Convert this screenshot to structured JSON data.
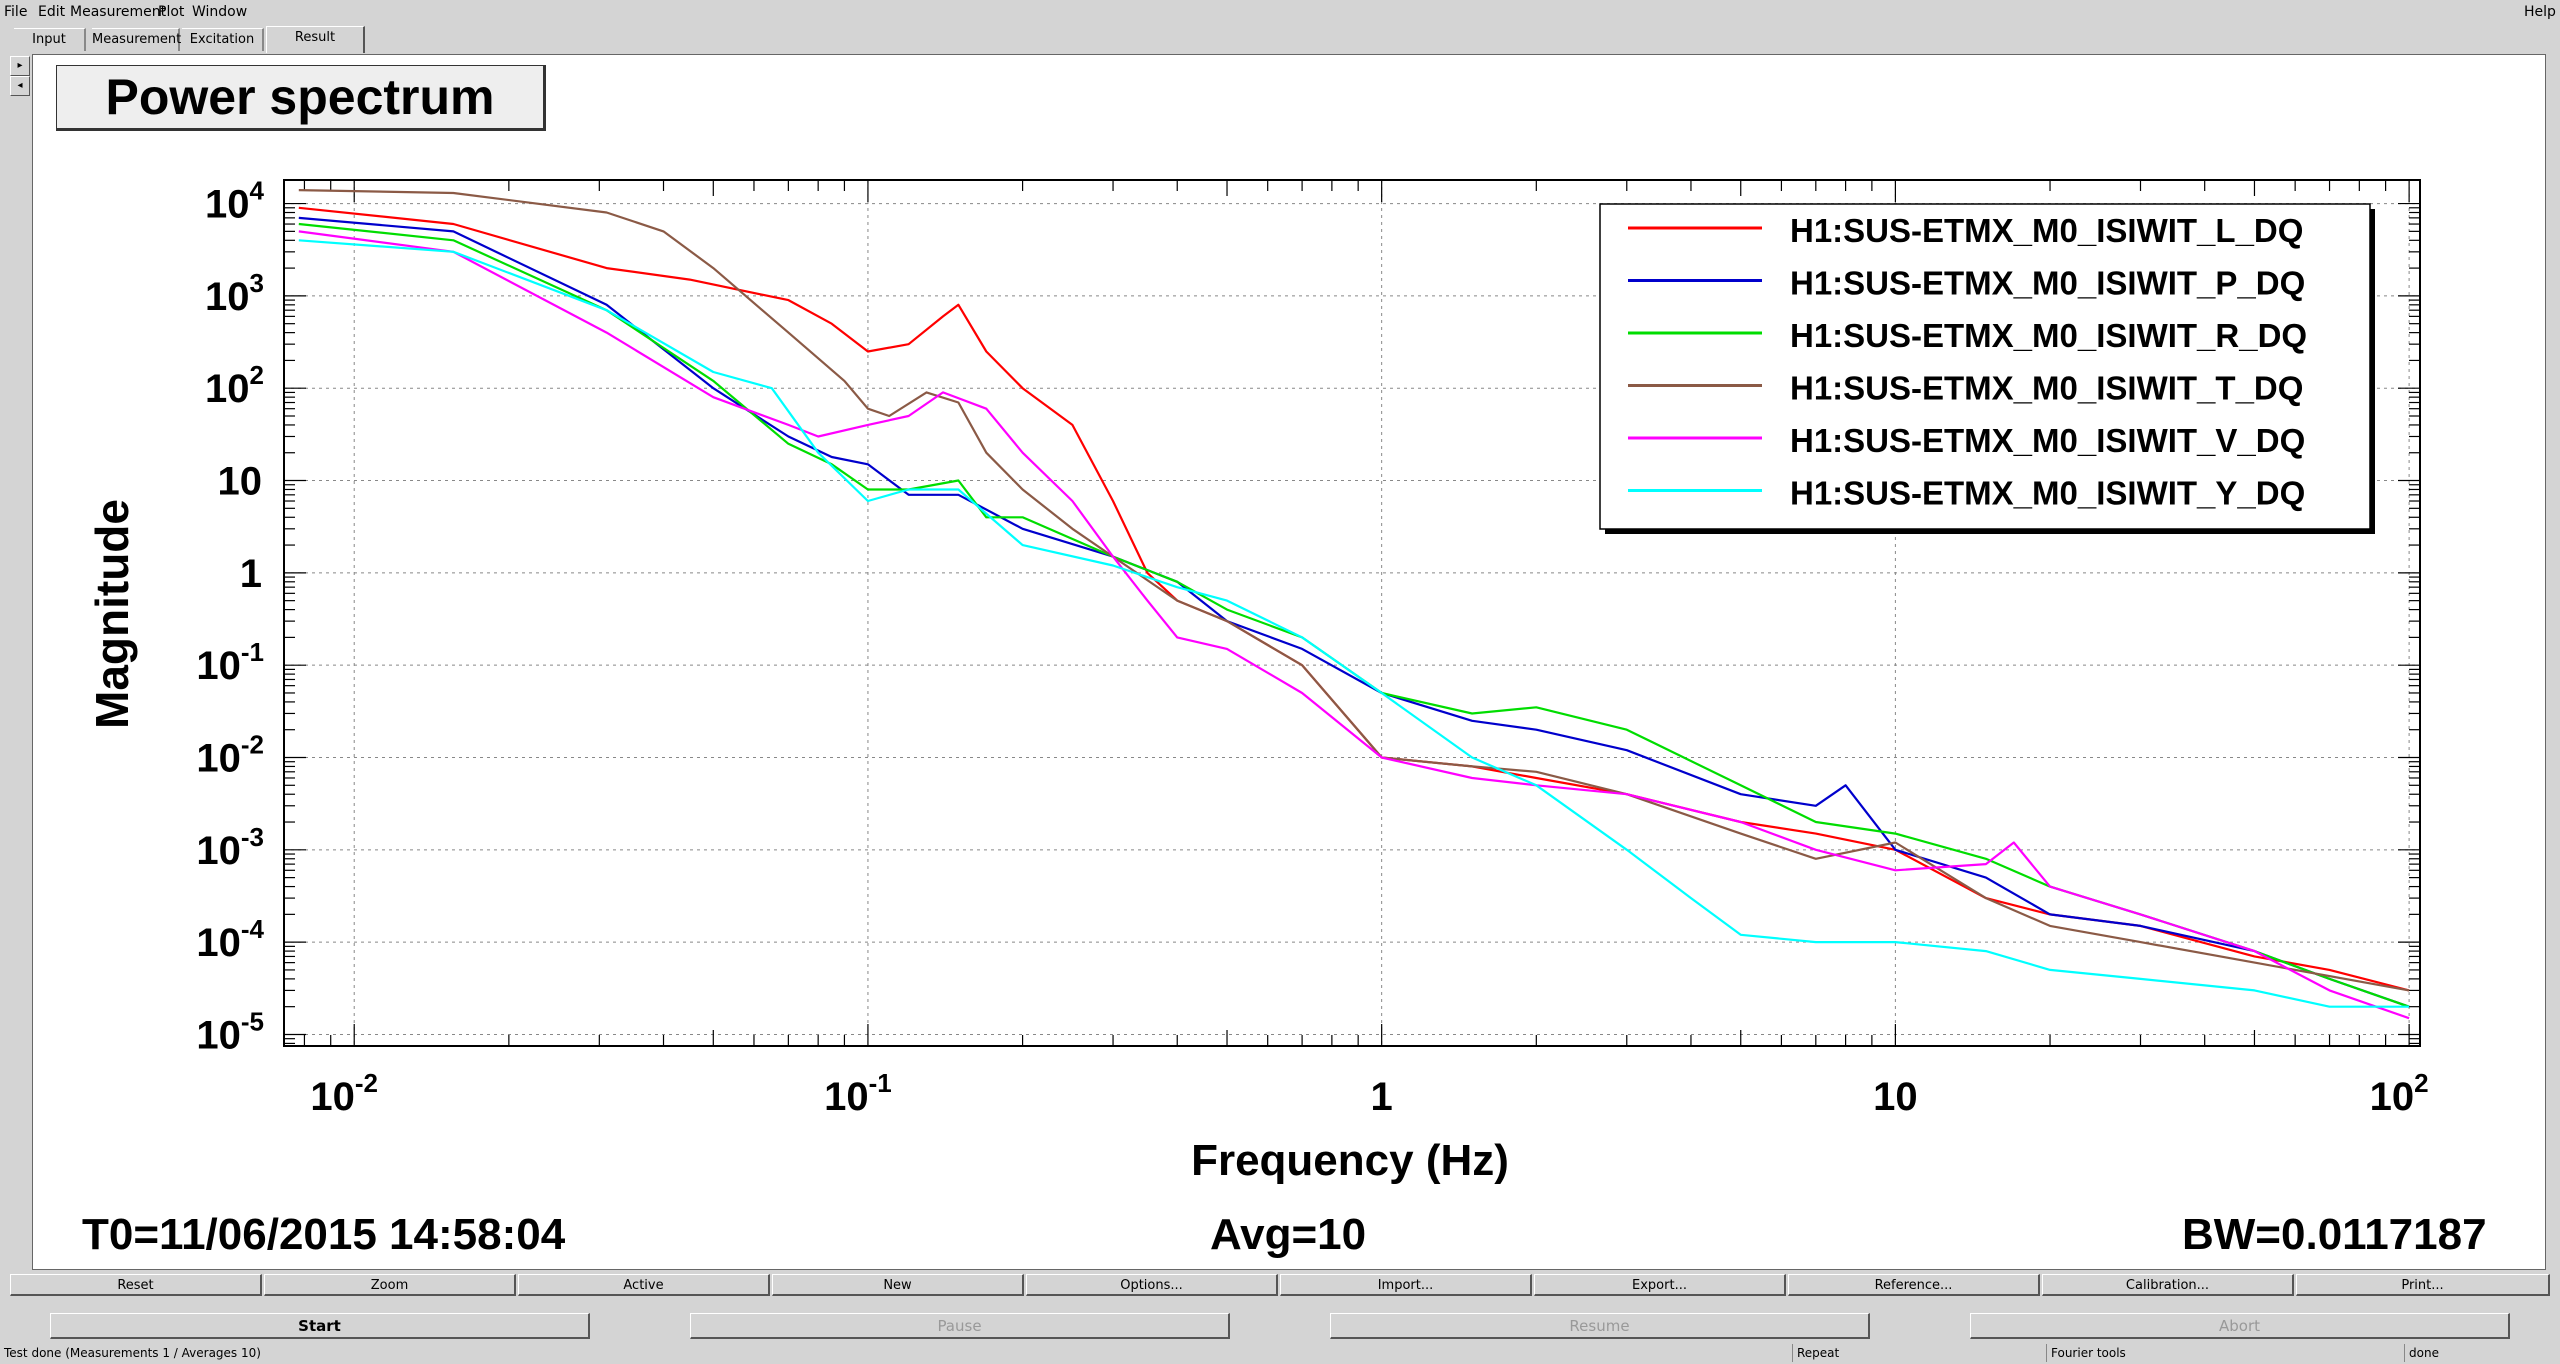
{
  "menu": [
    "File",
    "Edit",
    "Measurement",
    "Plot",
    "Window"
  ],
  "help": "Help",
  "tabs": [
    "Input",
    "Measurement",
    "Excitation",
    "Result"
  ],
  "active_tab": "Result",
  "plot_title": "Power spectrum",
  "footer": {
    "t0": "T0=11/06/2015 14:58:04",
    "avg": "Avg=10",
    "bw": "BW=0.0117187"
  },
  "buttons_row1": [
    "Reset",
    "Zoom",
    "Active",
    "New",
    "Options...",
    "Import...",
    "Export...",
    "Reference...",
    "Calibration...",
    "Print..."
  ],
  "buttons_row2": [
    "Start",
    "Pause",
    "Resume",
    "Abort"
  ],
  "status": [
    "Test done (Measurements 1 / Averages 10)",
    "Repeat",
    "Fourier tools",
    "done"
  ],
  "colors": {
    "L": "#ff0000",
    "P": "#0000cc",
    "R": "#00dd00",
    "T": "#8b5a46",
    "V": "#ff00ff",
    "Y": "#00ffff"
  },
  "chart_data": {
    "type": "line",
    "xlabel": "Frequency (Hz)",
    "ylabel": "Magnitude",
    "xscale": "log",
    "yscale": "log",
    "xlim": [
      0.0073,
      105
    ],
    "ylim": [
      7.5e-06,
      18000
    ],
    "grid": true,
    "legend_position": "top-right",
    "x_ticks": [
      {
        "value": 0.01,
        "base": "10",
        "exp": "-2"
      },
      {
        "value": 0.1,
        "base": "10",
        "exp": "-1"
      },
      {
        "value": 1,
        "base": "1",
        "exp": ""
      },
      {
        "value": 10,
        "base": "10",
        "exp": ""
      },
      {
        "value": 100,
        "base": "10",
        "exp": "2"
      }
    ],
    "y_ticks": [
      {
        "value": 10000,
        "base": "10",
        "exp": "4"
      },
      {
        "value": 1000,
        "base": "10",
        "exp": "3"
      },
      {
        "value": 100,
        "base": "10",
        "exp": "2"
      },
      {
        "value": 10,
        "base": "10",
        "exp": ""
      },
      {
        "value": 1,
        "base": "1",
        "exp": ""
      },
      {
        "value": 0.1,
        "base": "10",
        "exp": "-1"
      },
      {
        "value": 0.01,
        "base": "10",
        "exp": "-2"
      },
      {
        "value": 0.001,
        "base": "10",
        "exp": "-3"
      },
      {
        "value": 0.0001,
        "base": "10",
        "exp": "-4"
      },
      {
        "value": 1e-05,
        "base": "10",
        "exp": "-5"
      }
    ],
    "series": [
      {
        "name": "H1:SUS-ETMX_M0_ISIWIT_L_DQ",
        "color": "#ff0000",
        "x": [
          0.0078,
          0.0156,
          0.031,
          0.045,
          0.07,
          0.085,
          0.1,
          0.12,
          0.14,
          0.15,
          0.17,
          0.2,
          0.25,
          0.3,
          0.35,
          0.4,
          0.5,
          0.7,
          1,
          1.5,
          2,
          3,
          5,
          7,
          10,
          15,
          20,
          30,
          50,
          70,
          100
        ],
        "y": [
          9000,
          6000,
          2000,
          1500,
          900,
          500,
          250,
          300,
          600,
          800,
          250,
          100,
          40,
          6,
          1,
          0.5,
          0.3,
          0.1,
          0.01,
          0.008,
          0.006,
          0.004,
          0.002,
          0.0015,
          0.001,
          0.0003,
          0.0002,
          0.00015,
          7e-05,
          5e-05,
          3e-05
        ]
      },
      {
        "name": "H1:SUS-ETMX_M0_ISIWIT_P_DQ",
        "color": "#0000cc",
        "x": [
          0.0078,
          0.0156,
          0.031,
          0.05,
          0.07,
          0.085,
          0.1,
          0.12,
          0.15,
          0.2,
          0.3,
          0.4,
          0.5,
          0.7,
          1,
          1.5,
          2,
          3,
          5,
          7,
          8,
          10,
          15,
          20,
          30,
          50,
          70,
          100
        ],
        "y": [
          7000,
          5000,
          800,
          100,
          30,
          18,
          15,
          7,
          7,
          3,
          1.5,
          0.8,
          0.3,
          0.15,
          0.05,
          0.025,
          0.02,
          0.012,
          0.004,
          0.003,
          0.005,
          0.001,
          0.0005,
          0.0002,
          0.00015,
          8e-05,
          4e-05,
          2e-05
        ]
      },
      {
        "name": "H1:SUS-ETMX_M0_ISIWIT_R_DQ",
        "color": "#00dd00",
        "x": [
          0.0078,
          0.0156,
          0.031,
          0.05,
          0.07,
          0.085,
          0.1,
          0.12,
          0.15,
          0.17,
          0.2,
          0.3,
          0.4,
          0.5,
          0.7,
          1,
          1.5,
          2,
          3,
          5,
          7,
          10,
          15,
          20,
          30,
          50,
          70,
          100
        ],
        "y": [
          6000,
          4000,
          700,
          120,
          25,
          15,
          8,
          8,
          10,
          4,
          4,
          1.5,
          0.8,
          0.4,
          0.2,
          0.05,
          0.03,
          0.035,
          0.02,
          0.005,
          0.002,
          0.0015,
          0.0008,
          0.0004,
          0.0002,
          8e-05,
          4e-05,
          2e-05
        ]
      },
      {
        "name": "H1:SUS-ETMX_M0_ISIWIT_T_DQ",
        "color": "#8b5a46",
        "x": [
          0.0078,
          0.0156,
          0.031,
          0.04,
          0.05,
          0.07,
          0.09,
          0.1,
          0.11,
          0.13,
          0.15,
          0.17,
          0.2,
          0.25,
          0.3,
          0.4,
          0.5,
          0.7,
          1,
          1.5,
          2,
          3,
          5,
          7,
          10,
          15,
          20,
          30,
          50,
          100
        ],
        "y": [
          14000,
          13000,
          8000,
          5000,
          2000,
          400,
          120,
          60,
          50,
          90,
          70,
          20,
          8,
          3,
          1.5,
          0.5,
          0.3,
          0.1,
          0.01,
          0.008,
          0.007,
          0.004,
          0.0015,
          0.0008,
          0.0012,
          0.0003,
          0.00015,
          0.0001,
          6e-05,
          3e-05
        ]
      },
      {
        "name": "H1:SUS-ETMX_M0_ISIWIT_V_DQ",
        "color": "#ff00ff",
        "x": [
          0.0078,
          0.0156,
          0.031,
          0.05,
          0.07,
          0.08,
          0.1,
          0.12,
          0.14,
          0.17,
          0.2,
          0.25,
          0.3,
          0.35,
          0.4,
          0.5,
          0.7,
          1,
          1.5,
          2,
          3,
          5,
          7,
          10,
          15,
          17,
          20,
          30,
          50,
          70,
          100
        ],
        "y": [
          5000,
          3000,
          400,
          80,
          40,
          30,
          40,
          50,
          90,
          60,
          20,
          6,
          1.5,
          0.5,
          0.2,
          0.15,
          0.05,
          0.01,
          0.006,
          0.005,
          0.004,
          0.002,
          0.001,
          0.0006,
          0.0007,
          0.0012,
          0.0004,
          0.0002,
          8e-05,
          3e-05,
          1.5e-05
        ]
      },
      {
        "name": "H1:SUS-ETMX_M0_ISIWIT_Y_DQ",
        "color": "#00ffff",
        "x": [
          0.0078,
          0.0156,
          0.031,
          0.05,
          0.065,
          0.08,
          0.1,
          0.12,
          0.15,
          0.2,
          0.3,
          0.4,
          0.5,
          0.7,
          1,
          1.5,
          2,
          3,
          4,
          5,
          7,
          10,
          15,
          20,
          30,
          50,
          70,
          100
        ],
        "y": [
          4000,
          3000,
          700,
          150,
          100,
          20,
          6,
          8,
          8,
          2,
          1.2,
          0.7,
          0.5,
          0.2,
          0.05,
          0.01,
          0.005,
          0.001,
          0.0003,
          0.00012,
          0.0001,
          0.0001,
          8e-05,
          5e-05,
          4e-05,
          3e-05,
          2e-05,
          2e-05
        ]
      }
    ]
  }
}
